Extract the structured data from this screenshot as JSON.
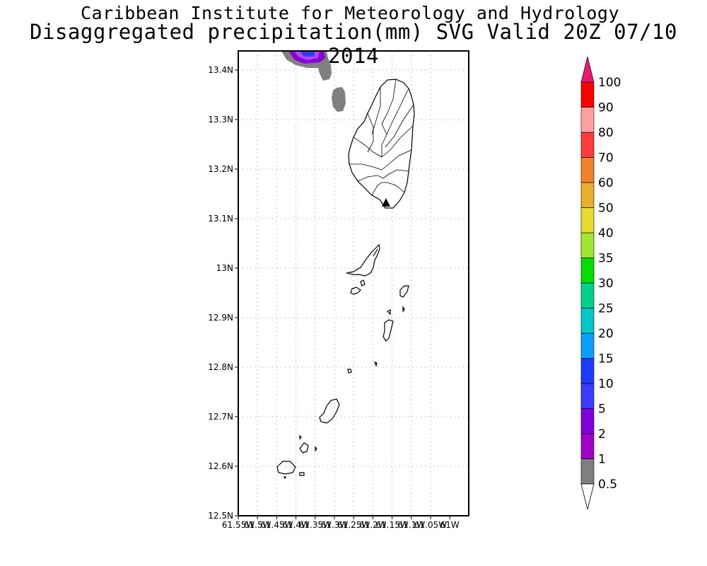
{
  "title": {
    "line1": "Caribbean Institute for Meteorology and Hydrology",
    "line2": "Disaggregated precipitation(mm) SVG Valid 20Z 07/10 2014"
  },
  "map": {
    "lat_ticks": [
      "12.5N",
      "12.6N",
      "12.7N",
      "12.8N",
      "12.9N",
      "13N",
      "13.1N",
      "13.2N",
      "13.3N",
      "13.4N"
    ],
    "lon_ticks": [
      "61.55W",
      "61.5W",
      "61.45W",
      "61.4W",
      "61.35W",
      "61.3W",
      "61.25W",
      "61.2W",
      "61.15W",
      "61.1W",
      "61.05W",
      "61W"
    ],
    "grid": "dotted",
    "islands": [
      "Saint Vincent",
      "Bequia",
      "Mustique",
      "Canouan",
      "Mayreau",
      "Union Island",
      "Palm Island",
      "Petit Saint Vincent"
    ],
    "precip_colors": {
      "gray": "#808080",
      "purple": "#8b00d6",
      "blue": "#3a3aff",
      "violet": "#b048ff"
    }
  },
  "colorbar": {
    "levels": [
      "0.5",
      "1",
      "2",
      "5",
      "10",
      "15",
      "20",
      "25",
      "30",
      "35",
      "40",
      "50",
      "60",
      "70",
      "80",
      "90",
      "100"
    ],
    "colors": [
      "#7f7f7f",
      "#a000c8",
      "#8200dc",
      "#3c3cff",
      "#1e3cff",
      "#0ba0ff",
      "#00c8c8",
      "#00d28c",
      "#00dc00",
      "#a0e632",
      "#e6dc32",
      "#e6af2d",
      "#f08228",
      "#fa3c3c",
      "#ffa0a0",
      "#ff0000",
      "#f03c3c"
    ],
    "top_arrow_color": "#e6196e",
    "bottom_arrow_color": "#ffffff"
  }
}
